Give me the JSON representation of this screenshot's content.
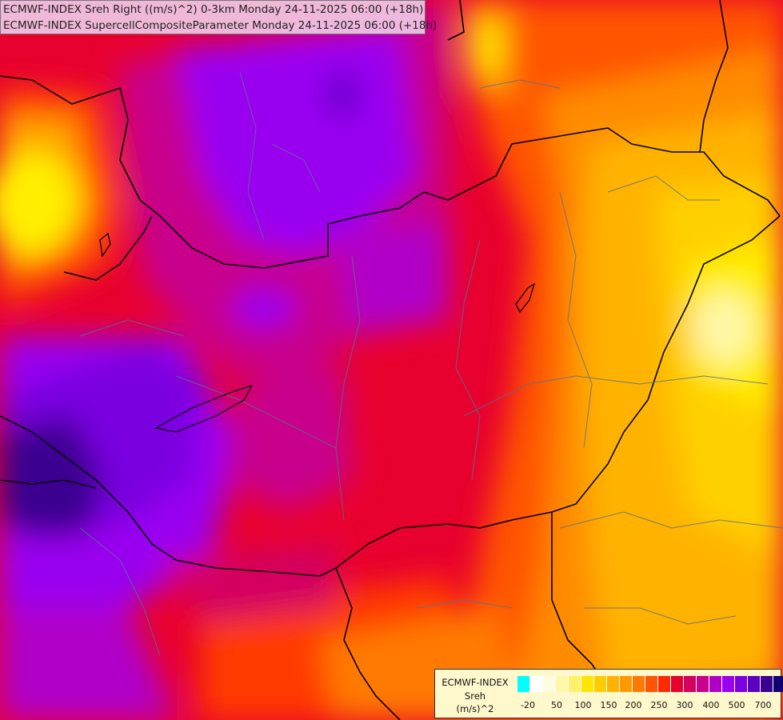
{
  "header": {
    "line1": "ECMWF-INDEX Sreh Right ((m/s)^2) 0-3km Monday 24-11-2025 06:00 (+18h)",
    "line2": "ECMWF-INDEX SupercellCompositeParameter Monday 24-11-2025 06:00 (+18h)"
  },
  "legend": {
    "title_line1": "ECMWF-INDEX",
    "title_line2": "Sreh",
    "title_line3": "(m/s)^2",
    "colors": [
      "#00ffff",
      "#ffffff",
      "#fffbe0",
      "#fff7a8",
      "#fff06a",
      "#ffe600",
      "#ffcc00",
      "#ffb300",
      "#ff9900",
      "#ff7a00",
      "#ff5500",
      "#ff2a00",
      "#e8002e",
      "#d40060",
      "#c8008c",
      "#b000c8",
      "#9a00f0",
      "#7a00e0",
      "#5a00c0",
      "#3a0090",
      "#100070"
    ],
    "tick_labels": [
      "-20",
      "50",
      "100",
      "150",
      "200",
      "250",
      "300",
      "400",
      "500",
      "700"
    ]
  }
}
